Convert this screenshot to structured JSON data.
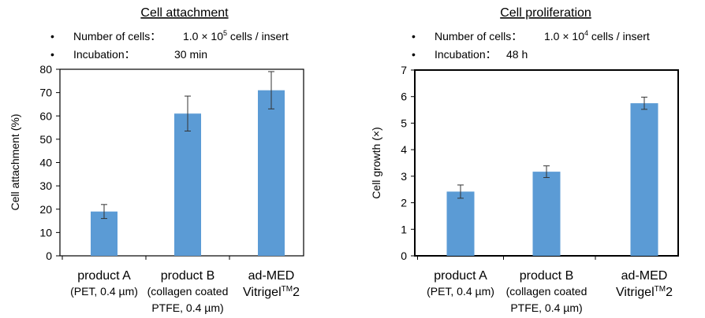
{
  "chart_data": [
    {
      "type": "bar",
      "title": "Cell attachment",
      "notes": [
        {
          "bullet": "•",
          "label": "Number of cells：",
          "value": "1.0 × 10",
          "sup": "5",
          "suffix": " cells / insert"
        },
        {
          "bullet": "•",
          "label": "Incubation：",
          "value": "30 min",
          "sup": "",
          "suffix": ""
        }
      ],
      "ylabel": "Cell attachment (%)",
      "ylim": [
        0,
        80
      ],
      "yticks": [
        0,
        10,
        20,
        30,
        40,
        50,
        60,
        70,
        80
      ],
      "grid": false,
      "categories": [
        {
          "line1": "product A",
          "line1_sup": "",
          "line1_tail": "",
          "line2": "(PET, 0.4 µm)",
          "line3": ""
        },
        {
          "line1": "product B",
          "line1_sup": "",
          "line1_tail": "",
          "line2": "(collagen coated",
          "line3": "PTFE, 0.4 µm)"
        },
        {
          "line1": "ad-MED",
          "line1_sup": "",
          "line1_tail": "",
          "line2": "Vitrigel",
          "line2_sup": "TM",
          "line2_tail": "2",
          "line3": ""
        }
      ],
      "values": [
        19,
        61,
        71
      ],
      "errors": [
        3,
        7.5,
        8
      ],
      "bar_color": "#5b9bd5"
    },
    {
      "type": "bar",
      "title": "Cell proliferation",
      "notes": [
        {
          "bullet": "•",
          "label": "Number of cells：",
          "value": "1.0 × 10",
          "sup": "4",
          "suffix": " cells / insert"
        },
        {
          "bullet": "•",
          "label": "Incubation：",
          "value": "48 h",
          "sup": "",
          "suffix": ""
        }
      ],
      "ylabel": "Cell growth (×)",
      "ylim": [
        0,
        7
      ],
      "yticks": [
        0,
        1,
        2,
        3,
        4,
        5,
        6,
        7
      ],
      "grid": false,
      "categories": [
        {
          "line1": "product A",
          "line2": "(PET, 0.4 µm)",
          "line3": ""
        },
        {
          "line1": "product B",
          "line2": "(collagen coated",
          "line3": "PTFE, 0.4 µm)"
        },
        {
          "line1": "ad-MED",
          "line2": "Vitrigel",
          "line2_sup": "TM",
          "line2_tail": "2",
          "line3": ""
        }
      ],
      "values": [
        2.42,
        3.17,
        5.75
      ],
      "errors": [
        0.25,
        0.22,
        0.23
      ],
      "bar_color": "#5b9bd5"
    }
  ]
}
